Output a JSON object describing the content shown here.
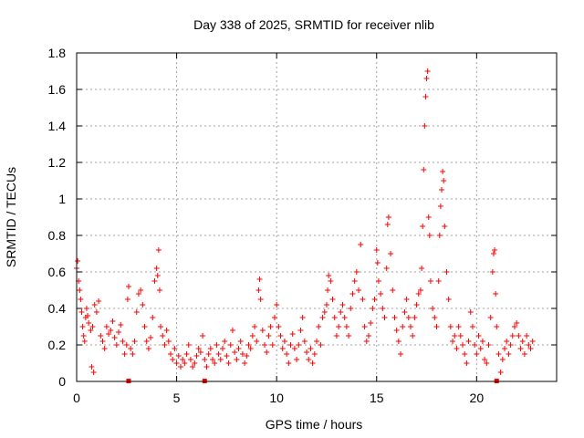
{
  "chart_data": {
    "type": "scatter",
    "title": "Day 338 of 2025, SRMTID for receiver nlib",
    "xlabel": "GPS time / hours",
    "ylabel": "SRMTID / TECUs",
    "xlim": [
      0,
      24
    ],
    "ylim": [
      0,
      1.8
    ],
    "xticks": [
      0,
      5,
      10,
      15,
      20
    ],
    "xtick_labels": [
      "0",
      "5",
      "10",
      "15",
      "20"
    ],
    "yticks": [
      0,
      0.2,
      0.4,
      0.6,
      0.8,
      1.0,
      1.2,
      1.4,
      1.6,
      1.8
    ],
    "ytick_labels": [
      "0",
      "0.2",
      "0.4",
      "0.6",
      "0.8",
      "1",
      "1.2",
      "1.4",
      "1.6",
      "1.8"
    ],
    "grid": true,
    "marker": "+",
    "color": "#ff0000",
    "series": [
      {
        "name": "SRMTID",
        "points": [
          [
            0.0,
            0.62
          ],
          [
            0.05,
            0.66
          ],
          [
            0.1,
            0.55
          ],
          [
            0.15,
            0.5
          ],
          [
            0.2,
            0.45
          ],
          [
            0.25,
            0.38
          ],
          [
            0.3,
            0.3
          ],
          [
            0.35,
            0.25
          ],
          [
            0.4,
            0.22
          ],
          [
            0.45,
            0.35
          ],
          [
            0.5,
            0.4
          ],
          [
            0.55,
            0.36
          ],
          [
            0.6,
            0.32
          ],
          [
            0.7,
            0.28
          ],
          [
            0.8,
            0.3
          ],
          [
            0.9,
            0.42
          ],
          [
            1.0,
            0.38
          ],
          [
            1.1,
            0.44
          ],
          [
            0.75,
            0.08
          ],
          [
            0.85,
            0.05
          ],
          [
            1.2,
            0.25
          ],
          [
            1.3,
            0.22
          ],
          [
            1.4,
            0.18
          ],
          [
            1.5,
            0.3
          ],
          [
            1.6,
            0.26
          ],
          [
            1.7,
            0.28
          ],
          [
            1.8,
            0.33
          ],
          [
            1.9,
            0.24
          ],
          [
            2.0,
            0.2
          ],
          [
            2.1,
            0.27
          ],
          [
            2.2,
            0.31
          ],
          [
            2.3,
            0.22
          ],
          [
            2.4,
            0.15
          ],
          [
            2.5,
            0.2
          ],
          [
            2.55,
            0.45
          ],
          [
            2.6,
            0.52
          ],
          [
            2.7,
            0.18
          ],
          [
            2.8,
            0.15
          ],
          [
            2.9,
            0.22
          ],
          [
            3.0,
            0.38
          ],
          [
            3.1,
            0.48
          ],
          [
            3.2,
            0.5
          ],
          [
            3.3,
            0.42
          ],
          [
            3.4,
            0.3
          ],
          [
            3.5,
            0.22
          ],
          [
            3.6,
            0.18
          ],
          [
            3.7,
            0.24
          ],
          [
            3.8,
            0.35
          ],
          [
            3.9,
            0.55
          ],
          [
            4.0,
            0.62
          ],
          [
            4.05,
            0.58
          ],
          [
            4.1,
            0.72
          ],
          [
            4.15,
            0.5
          ],
          [
            4.2,
            0.3
          ],
          [
            4.3,
            0.25
          ],
          [
            4.4,
            0.2
          ],
          [
            4.5,
            0.28
          ],
          [
            4.6,
            0.22
          ],
          [
            4.7,
            0.15
          ],
          [
            4.8,
            0.12
          ],
          [
            4.9,
            0.18
          ],
          [
            5.0,
            0.1
          ],
          [
            5.1,
            0.14
          ],
          [
            5.2,
            0.08
          ],
          [
            5.3,
            0.12
          ],
          [
            5.4,
            0.1
          ],
          [
            5.5,
            0.15
          ],
          [
            5.6,
            0.2
          ],
          [
            5.7,
            0.12
          ],
          [
            5.8,
            0.08
          ],
          [
            5.9,
            0.1
          ],
          [
            6.0,
            0.14
          ],
          [
            6.1,
            0.18
          ],
          [
            6.2,
            0.16
          ],
          [
            6.3,
            0.25
          ],
          [
            6.4,
            0.12
          ],
          [
            6.5,
            0.08
          ],
          [
            6.6,
            0.15
          ],
          [
            6.7,
            0.18
          ],
          [
            6.8,
            0.12
          ],
          [
            6.9,
            0.1
          ],
          [
            7.0,
            0.2
          ],
          [
            7.1,
            0.15
          ],
          [
            7.2,
            0.12
          ],
          [
            7.3,
            0.18
          ],
          [
            7.4,
            0.22
          ],
          [
            7.5,
            0.14
          ],
          [
            7.6,
            0.1
          ],
          [
            7.7,
            0.2
          ],
          [
            7.8,
            0.28
          ],
          [
            7.9,
            0.16
          ],
          [
            8.0,
            0.12
          ],
          [
            8.1,
            0.18
          ],
          [
            8.2,
            0.22
          ],
          [
            8.3,
            0.15
          ],
          [
            8.4,
            0.1
          ],
          [
            8.5,
            0.14
          ],
          [
            8.6,
            0.2
          ],
          [
            8.7,
            0.18
          ],
          [
            8.8,
            0.25
          ],
          [
            8.9,
            0.3
          ],
          [
            9.0,
            0.22
          ],
          [
            9.1,
            0.5
          ],
          [
            9.15,
            0.56
          ],
          [
            9.2,
            0.45
          ],
          [
            9.3,
            0.28
          ],
          [
            9.4,
            0.2
          ],
          [
            9.5,
            0.16
          ],
          [
            9.6,
            0.25
          ],
          [
            9.7,
            0.3
          ],
          [
            9.8,
            0.2
          ],
          [
            9.9,
            0.35
          ],
          [
            10.0,
            0.42
          ],
          [
            10.1,
            0.3
          ],
          [
            10.2,
            0.25
          ],
          [
            10.3,
            0.18
          ],
          [
            10.4,
            0.22
          ],
          [
            10.5,
            0.15
          ],
          [
            10.6,
            0.1
          ],
          [
            10.7,
            0.2
          ],
          [
            10.8,
            0.26
          ],
          [
            10.9,
            0.18
          ],
          [
            11.0,
            0.12
          ],
          [
            11.1,
            0.2
          ],
          [
            11.2,
            0.28
          ],
          [
            11.3,
            0.35
          ],
          [
            11.4,
            0.22
          ],
          [
            11.5,
            0.16
          ],
          [
            11.6,
            0.12
          ],
          [
            11.7,
            0.18
          ],
          [
            11.8,
            0.1
          ],
          [
            11.9,
            0.15
          ],
          [
            12.0,
            0.22
          ],
          [
            12.1,
            0.3
          ],
          [
            12.2,
            0.2
          ],
          [
            12.3,
            0.35
          ],
          [
            12.4,
            0.38
          ],
          [
            12.5,
            0.42
          ],
          [
            12.55,
            0.5
          ],
          [
            12.6,
            0.58
          ],
          [
            12.7,
            0.55
          ],
          [
            12.8,
            0.45
          ],
          [
            12.9,
            0.35
          ],
          [
            13.0,
            0.25
          ],
          [
            13.1,
            0.3
          ],
          [
            13.2,
            0.38
          ],
          [
            13.3,
            0.42
          ],
          [
            13.4,
            0.35
          ],
          [
            13.5,
            0.3
          ],
          [
            13.6,
            0.25
          ],
          [
            13.7,
            0.4
          ],
          [
            13.8,
            0.48
          ],
          [
            13.9,
            0.55
          ],
          [
            14.0,
            0.6
          ],
          [
            14.1,
            0.5
          ],
          [
            14.2,
            0.75
          ],
          [
            14.3,
            0.45
          ],
          [
            14.4,
            0.3
          ],
          [
            14.5,
            0.22
          ],
          [
            14.6,
            0.25
          ],
          [
            14.7,
            0.32
          ],
          [
            14.8,
            0.4
          ],
          [
            14.9,
            0.45
          ],
          [
            15.0,
            0.72
          ],
          [
            15.05,
            0.65
          ],
          [
            15.1,
            0.55
          ],
          [
            15.2,
            0.48
          ],
          [
            15.3,
            0.4
          ],
          [
            15.4,
            0.35
          ],
          [
            15.5,
            0.62
          ],
          [
            15.55,
            0.86
          ],
          [
            15.6,
            0.9
          ],
          [
            15.7,
            0.7
          ],
          [
            15.8,
            0.5
          ],
          [
            15.9,
            0.35
          ],
          [
            16.0,
            0.28
          ],
          [
            16.1,
            0.22
          ],
          [
            16.2,
            0.15
          ],
          [
            16.3,
            0.3
          ],
          [
            16.4,
            0.38
          ],
          [
            16.5,
            0.45
          ],
          [
            16.6,
            0.35
          ],
          [
            16.7,
            0.3
          ],
          [
            16.8,
            0.25
          ],
          [
            16.9,
            0.35
          ],
          [
            17.0,
            0.42
          ],
          [
            17.1,
            0.48
          ],
          [
            17.2,
            0.5
          ],
          [
            17.25,
            0.62
          ],
          [
            17.3,
            0.85
          ],
          [
            17.35,
            1.16
          ],
          [
            17.4,
            1.4
          ],
          [
            17.45,
            1.56
          ],
          [
            17.5,
            1.66
          ],
          [
            17.55,
            1.7
          ],
          [
            17.6,
            0.9
          ],
          [
            17.65,
            0.8
          ],
          [
            17.7,
            0.55
          ],
          [
            17.8,
            0.4
          ],
          [
            17.9,
            0.35
          ],
          [
            18.0,
            0.3
          ],
          [
            18.1,
            0.55
          ],
          [
            18.15,
            0.8
          ],
          [
            18.2,
            0.96
          ],
          [
            18.25,
            1.05
          ],
          [
            18.3,
            1.15
          ],
          [
            18.35,
            1.1
          ],
          [
            18.4,
            0.85
          ],
          [
            18.5,
            0.6
          ],
          [
            18.6,
            0.45
          ],
          [
            18.7,
            0.3
          ],
          [
            18.8,
            0.22
          ],
          [
            18.9,
            0.25
          ],
          [
            19.0,
            0.18
          ],
          [
            19.1,
            0.3
          ],
          [
            19.2,
            0.25
          ],
          [
            19.3,
            0.2
          ],
          [
            19.4,
            0.15
          ],
          [
            19.5,
            0.1
          ],
          [
            19.6,
            0.22
          ],
          [
            19.7,
            0.38
          ],
          [
            19.8,
            0.3
          ],
          [
            19.9,
            0.2
          ],
          [
            20.0,
            0.15
          ],
          [
            20.1,
            0.25
          ],
          [
            20.2,
            0.18
          ],
          [
            20.3,
            0.22
          ],
          [
            20.4,
            0.12
          ],
          [
            20.5,
            0.1
          ],
          [
            20.6,
            0.2
          ],
          [
            20.7,
            0.35
          ],
          [
            20.8,
            0.6
          ],
          [
            20.85,
            0.7
          ],
          [
            20.9,
            0.72
          ],
          [
            20.95,
            0.48
          ],
          [
            21.0,
            0.3
          ],
          [
            21.1,
            0.15
          ],
          [
            21.2,
            0.05
          ],
          [
            21.3,
            0.12
          ],
          [
            21.4,
            0.18
          ],
          [
            21.5,
            0.22
          ],
          [
            21.6,
            0.15
          ],
          [
            21.7,
            0.2
          ],
          [
            21.8,
            0.25
          ],
          [
            21.9,
            0.3
          ],
          [
            22.0,
            0.32
          ],
          [
            22.1,
            0.25
          ],
          [
            22.2,
            0.18
          ],
          [
            22.3,
            0.22
          ],
          [
            22.4,
            0.15
          ],
          [
            22.5,
            0.25
          ],
          [
            22.6,
            0.2
          ],
          [
            22.7,
            0.18
          ],
          [
            22.8,
            0.22
          ]
        ]
      }
    ],
    "ground_marks_x": [
      2.6,
      6.4,
      21.0
    ]
  }
}
